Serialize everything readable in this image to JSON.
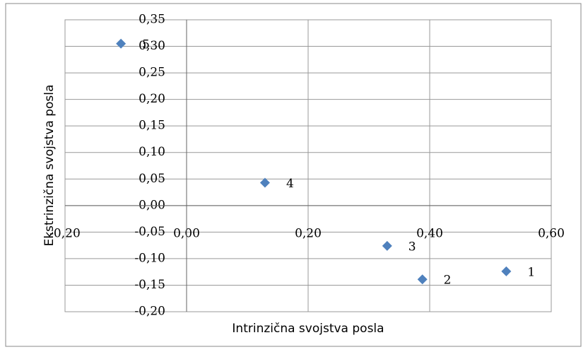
{
  "chart_data": {
    "type": "scatter",
    "x_label": "Intrinzična svojstva posla",
    "y_label": "Ekstrinzična svojstva posla",
    "labels": [
      "1",
      "2",
      "3",
      "4",
      "5"
    ],
    "x": [
      0.526,
      0.388,
      0.33,
      0.129,
      -0.108
    ],
    "y": [
      -0.124,
      -0.139,
      -0.076,
      0.043,
      0.305
    ],
    "color": "#4f81bd",
    "xlim": [
      -0.2,
      0.6
    ],
    "xticks": [
      {
        "value": -0.2,
        "label": "-0,20"
      },
      {
        "value": 0,
        "label": "0,00"
      },
      {
        "value": 0.2,
        "label": "0,20"
      },
      {
        "value": 0.4,
        "label": "0,40"
      },
      {
        "value": 0.6,
        "label": "0,60"
      }
    ],
    "ylim": [
      -0.2,
      0.35
    ],
    "yticks": [
      {
        "value": -0.2,
        "label": "-0,20"
      },
      {
        "value": -0.15,
        "label": "-0,15"
      },
      {
        "value": -0.1,
        "label": "-0,10"
      },
      {
        "value": -0.05,
        "label": "-0,05"
      },
      {
        "value": 0,
        "label": "0,00"
      },
      {
        "value": 0.05,
        "label": "0,05"
      },
      {
        "value": 0.1,
        "label": "0,10"
      },
      {
        "value": 0.15,
        "label": "0,15"
      },
      {
        "value": 0.2,
        "label": "0,20"
      },
      {
        "value": 0.25,
        "label": "0,25"
      },
      {
        "value": 0.3,
        "label": "0,30"
      },
      {
        "value": 0.35,
        "label": "0,35"
      }
    ],
    "grid": true
  }
}
